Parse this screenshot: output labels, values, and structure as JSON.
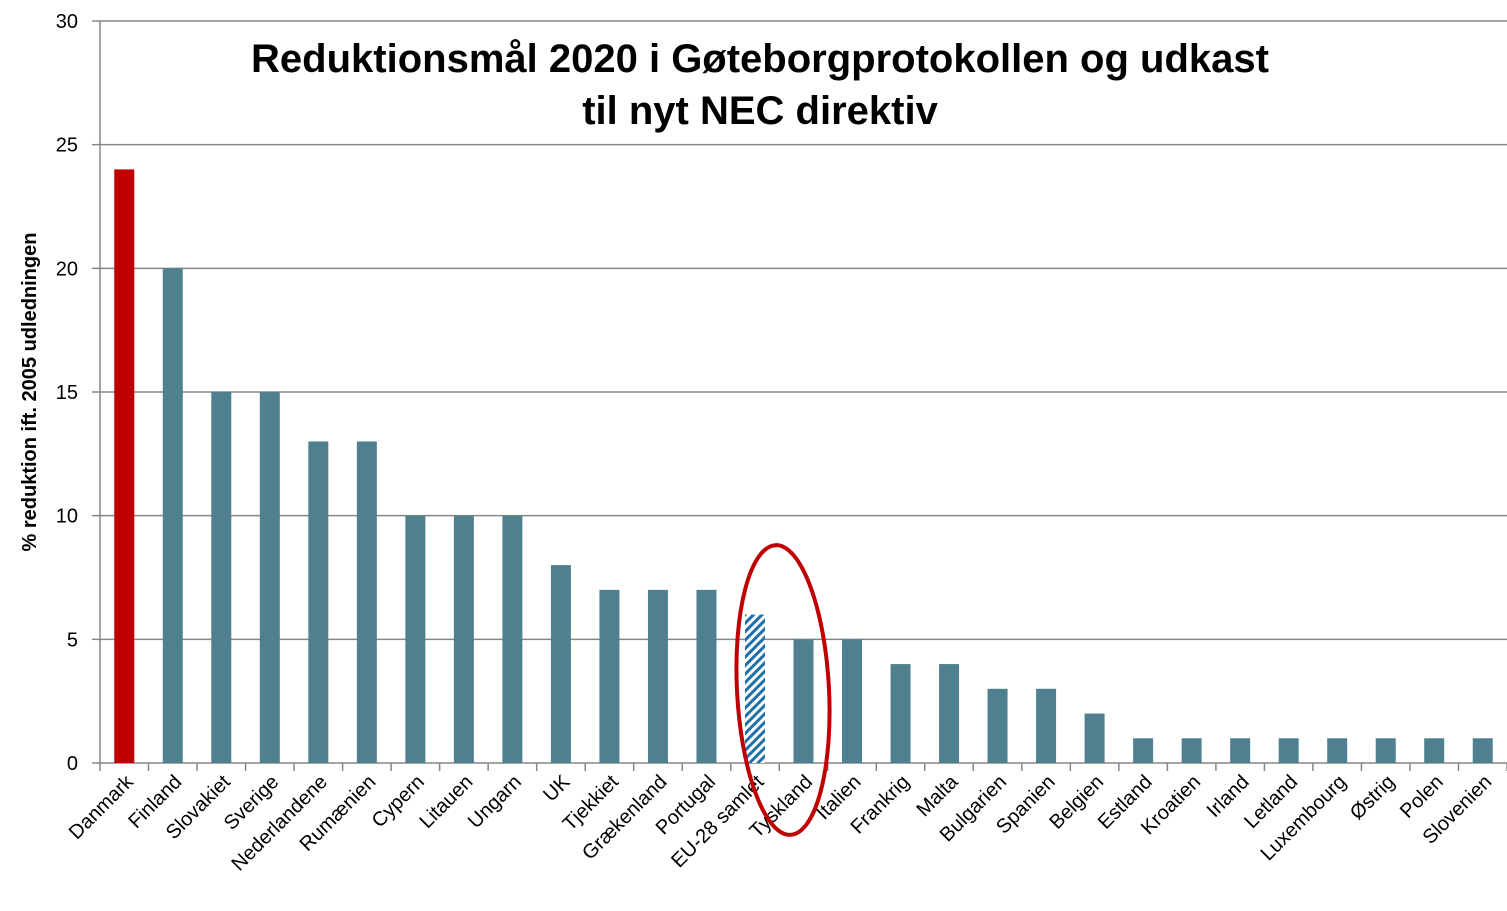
{
  "chart_data": {
    "type": "bar",
    "title": [
      "Reduktionsmål 2020 i Gøteborgprotokollen og udkast",
      "til nyt NEC direktiv"
    ],
    "y_label": "% reduktion ift. 2005 udledningen",
    "categories": [
      "Danmark",
      "Finland",
      "Slovakiet",
      "Sverige",
      "Nederlandene",
      "Rumænien",
      "Cypern",
      "Litauen",
      "Ungarn",
      "UK",
      "Tjekkiet",
      "Grækenland",
      "Portugal",
      "EU-28 samlet",
      "Tyskland",
      "Italien",
      "Frankrig",
      "Malta",
      "Bulgarien",
      "Spanien",
      "Belgien",
      "Estland",
      "Kroatien",
      "Irland",
      "Letland",
      "Luxembourg",
      "Østrig",
      "Polen",
      "Slovenien"
    ],
    "values": [
      24,
      20,
      15,
      15,
      13,
      13,
      10,
      10,
      10,
      8,
      7,
      7,
      7,
      6,
      5,
      5,
      4,
      4,
      3,
      3,
      2,
      1,
      1,
      1,
      1,
      1,
      1,
      1,
      1
    ],
    "colors": [
      "#c00000",
      "#4f8090",
      "#4f8090",
      "#4f8090",
      "#4f8090",
      "#4f8090",
      "#4f8090",
      "#4f8090",
      "#4f8090",
      "#4f8090",
      "#4f8090",
      "#4f8090",
      "#4f8090",
      "#1f6fa8",
      "#4f8090",
      "#4f8090",
      "#4f8090",
      "#4f8090",
      "#4f8090",
      "#4f8090",
      "#4f8090",
      "#4f8090",
      "#4f8090",
      "#4f8090",
      "#4f8090",
      "#4f8090",
      "#4f8090",
      "#4f8090",
      "#4f8090"
    ],
    "hatched": [
      false,
      false,
      false,
      false,
      false,
      false,
      false,
      false,
      false,
      false,
      false,
      false,
      false,
      true,
      false,
      false,
      false,
      false,
      false,
      false,
      false,
      false,
      false,
      false,
      false,
      false,
      false,
      false,
      false
    ],
    "ylim": [
      0,
      30
    ],
    "yticks": [
      0,
      5,
      10,
      15,
      20,
      25,
      30
    ],
    "grid": true
  }
}
